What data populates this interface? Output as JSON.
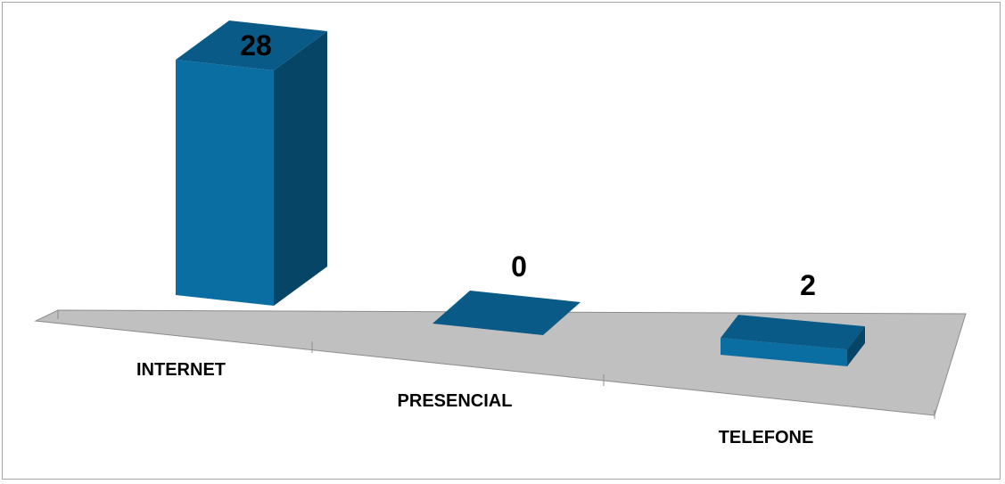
{
  "chart_data": {
    "type": "bar",
    "categories": [
      "INTERNET",
      "PRESENCIAL",
      "TELEFONE"
    ],
    "values": [
      28,
      0,
      2
    ],
    "title": "",
    "xlabel": "",
    "ylabel": "",
    "ylim": [
      0,
      28
    ],
    "grid": false,
    "three_d": true,
    "data_labels": true,
    "colors": {
      "bar_front": "#0b6ea3",
      "bar_side": "#074566",
      "bar_top": "#0a5a87",
      "floor": "#c0c0c0",
      "floor_edge": "#8c8c8c"
    }
  }
}
